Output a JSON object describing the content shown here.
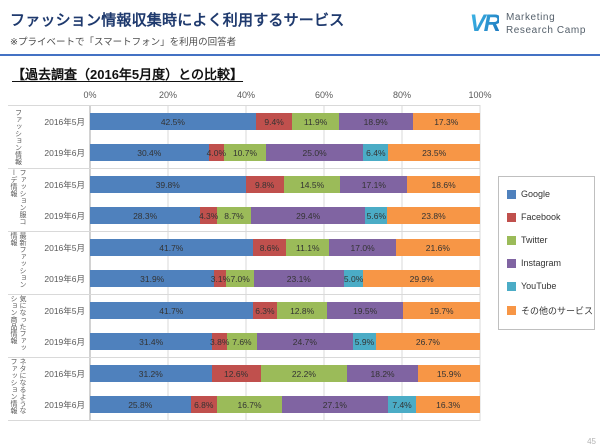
{
  "header": {
    "title": "ファッション情報収集時によく利用するサービス",
    "subtitle": "※プライベートで「スマートフォン」を利用の回答者",
    "logo": {
      "mark": "VR",
      "line1": "Marketing",
      "line2": "Research Camp"
    }
  },
  "section_heading": "【過去調査（2016年5月度）との比較】",
  "page_number": "45",
  "colors": {
    "title": "#1F3A6E",
    "accent_line": "#4472C4"
  },
  "chart_data": {
    "type": "bar",
    "orientation": "horizontal",
    "stacked": true,
    "title": "【過去調査（2016年5月度）との比較】",
    "xlabel": "",
    "ylabel": "",
    "xlim": [
      0,
      100
    ],
    "grid": true,
    "legend_position": "right",
    "axis_ticks": [
      "0%",
      "20%",
      "40%",
      "60%",
      "80%",
      "100%"
    ],
    "series": [
      {
        "key": "google",
        "name": "Google",
        "color": "#4F81BD"
      },
      {
        "key": "facebook",
        "name": "Facebook",
        "color": "#C0504D"
      },
      {
        "key": "twitter",
        "name": "Twitter",
        "color": "#9BBB59"
      },
      {
        "key": "instagram",
        "name": "Instagram",
        "color": "#8064A2"
      },
      {
        "key": "youtube",
        "name": "YouTube",
        "color": "#4BACC6"
      },
      {
        "key": "other-services",
        "name": "その他のサービス",
        "color": "#F79646"
      }
    ],
    "groups": [
      {
        "category": "ファッション情報",
        "rows": [
          {
            "label": "2016年5月",
            "values": [
              42.5,
              9.4,
              11.9,
              18.9,
              null,
              17.3
            ]
          },
          {
            "label": "2019年6月",
            "values": [
              30.4,
              4.0,
              10.7,
              25.0,
              6.4,
              23.5
            ]
          }
        ]
      },
      {
        "category": "ファッション服コーデ情報",
        "rows": [
          {
            "label": "2016年5月",
            "values": [
              39.8,
              9.8,
              14.5,
              17.1,
              null,
              18.6
            ]
          },
          {
            "label": "2019年6月",
            "values": [
              28.3,
              4.3,
              8.7,
              29.4,
              5.6,
              23.8
            ]
          }
        ]
      },
      {
        "category": "最新ファッション情報",
        "rows": [
          {
            "label": "2016年5月",
            "values": [
              41.7,
              8.6,
              11.1,
              17.0,
              null,
              21.6
            ]
          },
          {
            "label": "2019年6月",
            "values": [
              31.9,
              3.1,
              7.0,
              23.1,
              5.0,
              29.9
            ]
          }
        ]
      },
      {
        "category": "気になったファッション商品情報",
        "rows": [
          {
            "label": "2016年5月",
            "values": [
              41.7,
              6.3,
              12.8,
              19.5,
              null,
              19.7
            ]
          },
          {
            "label": "2019年6月",
            "values": [
              31.4,
              3.8,
              7.6,
              24.7,
              5.9,
              26.7
            ]
          }
        ]
      },
      {
        "category": "ネタになるようなファッション情報",
        "rows": [
          {
            "label": "2016年5月",
            "values": [
              31.2,
              12.6,
              22.2,
              18.2,
              null,
              15.9
            ]
          },
          {
            "label": "2019年6月",
            "values": [
              25.8,
              6.8,
              16.7,
              27.1,
              7.4,
              16.3
            ]
          }
        ]
      }
    ]
  }
}
